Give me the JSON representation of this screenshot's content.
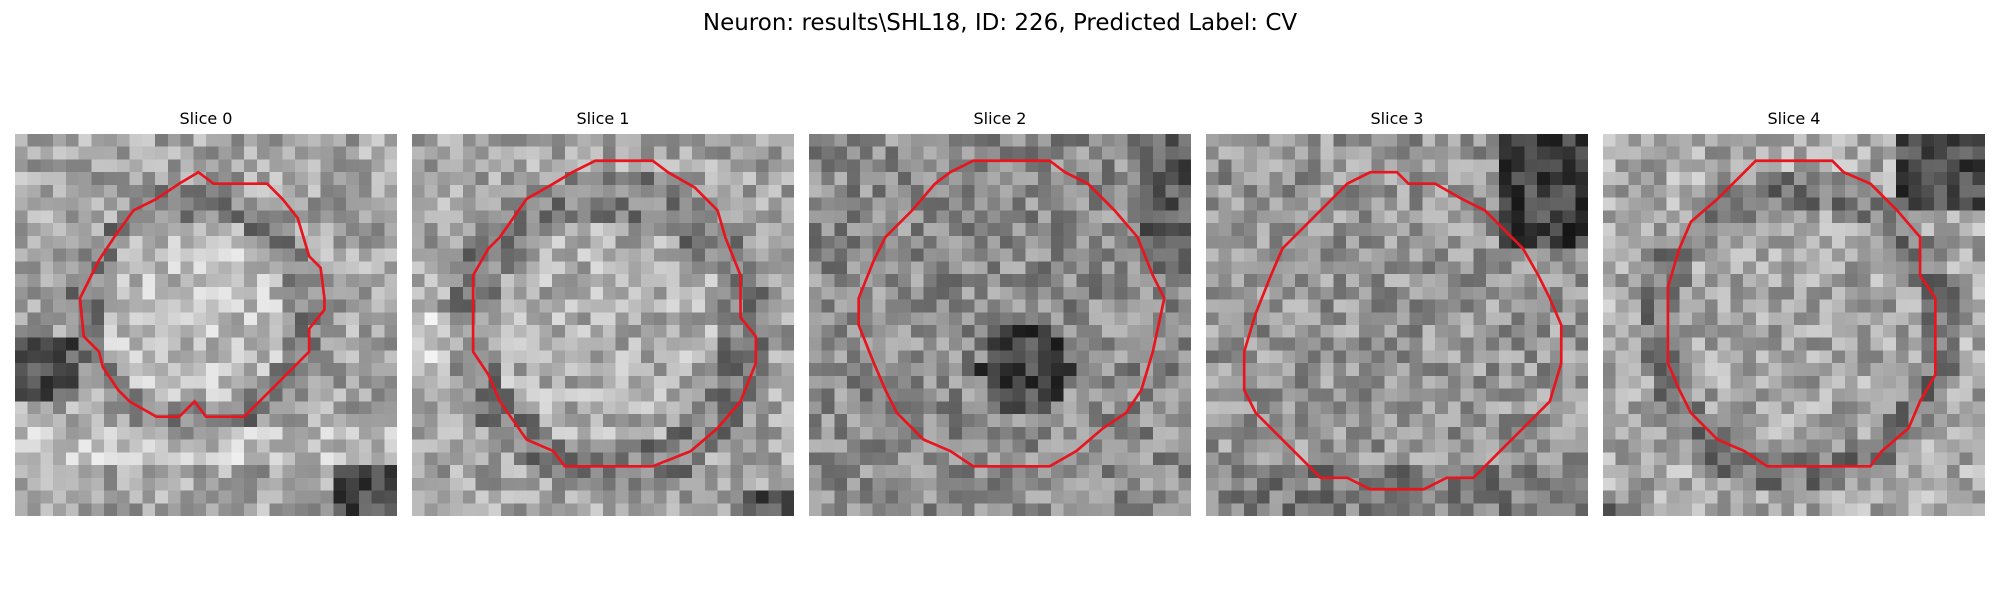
{
  "figure": {
    "title": "Neuron: results\\SHL18, ID: 226, Predicted Label: CV"
  },
  "panels": [
    {
      "title": "Slice 0",
      "contour_color": "#e8141e",
      "contour": [
        [
          0.48,
          0.1
        ],
        [
          0.52,
          0.13
        ],
        [
          0.66,
          0.13
        ],
        [
          0.7,
          0.17
        ],
        [
          0.74,
          0.22
        ],
        [
          0.77,
          0.32
        ],
        [
          0.8,
          0.35
        ],
        [
          0.81,
          0.43
        ],
        [
          0.81,
          0.46
        ],
        [
          0.77,
          0.51
        ],
        [
          0.77,
          0.57
        ],
        [
          0.74,
          0.6
        ],
        [
          0.7,
          0.64
        ],
        [
          0.6,
          0.74
        ],
        [
          0.57,
          0.74
        ],
        [
          0.5,
          0.74
        ],
        [
          0.47,
          0.7
        ],
        [
          0.43,
          0.74
        ],
        [
          0.37,
          0.74
        ],
        [
          0.3,
          0.7
        ],
        [
          0.27,
          0.67
        ],
        [
          0.23,
          0.61
        ],
        [
          0.22,
          0.57
        ],
        [
          0.18,
          0.53
        ],
        [
          0.17,
          0.43
        ],
        [
          0.22,
          0.33
        ],
        [
          0.26,
          0.27
        ],
        [
          0.31,
          0.2
        ],
        [
          0.37,
          0.17
        ],
        [
          0.43,
          0.13
        ]
      ]
    },
    {
      "title": "Slice 1",
      "contour_color": "#e8141e",
      "contour": [
        [
          0.48,
          0.07
        ],
        [
          0.63,
          0.07
        ],
        [
          0.67,
          0.1
        ],
        [
          0.74,
          0.14
        ],
        [
          0.8,
          0.2
        ],
        [
          0.82,
          0.27
        ],
        [
          0.86,
          0.37
        ],
        [
          0.86,
          0.48
        ],
        [
          0.9,
          0.53
        ],
        [
          0.9,
          0.6
        ],
        [
          0.86,
          0.7
        ],
        [
          0.8,
          0.77
        ],
        [
          0.73,
          0.83
        ],
        [
          0.63,
          0.87
        ],
        [
          0.57,
          0.87
        ],
        [
          0.4,
          0.87
        ],
        [
          0.37,
          0.83
        ],
        [
          0.3,
          0.8
        ],
        [
          0.23,
          0.7
        ],
        [
          0.2,
          0.63
        ],
        [
          0.16,
          0.57
        ],
        [
          0.16,
          0.48
        ],
        [
          0.16,
          0.37
        ],
        [
          0.2,
          0.3
        ],
        [
          0.23,
          0.27
        ],
        [
          0.3,
          0.17
        ],
        [
          0.37,
          0.13
        ],
        [
          0.42,
          0.1
        ]
      ]
    },
    {
      "title": "Slice 2",
      "contour_color": "#e8141e",
      "contour": [
        [
          0.43,
          0.07
        ],
        [
          0.63,
          0.07
        ],
        [
          0.67,
          0.1
        ],
        [
          0.73,
          0.13
        ],
        [
          0.8,
          0.2
        ],
        [
          0.86,
          0.27
        ],
        [
          0.9,
          0.37
        ],
        [
          0.93,
          0.43
        ],
        [
          0.9,
          0.57
        ],
        [
          0.87,
          0.67
        ],
        [
          0.83,
          0.73
        ],
        [
          0.77,
          0.77
        ],
        [
          0.7,
          0.83
        ],
        [
          0.63,
          0.87
        ],
        [
          0.57,
          0.87
        ],
        [
          0.43,
          0.87
        ],
        [
          0.37,
          0.83
        ],
        [
          0.3,
          0.8
        ],
        [
          0.23,
          0.73
        ],
        [
          0.2,
          0.67
        ],
        [
          0.17,
          0.6
        ],
        [
          0.13,
          0.5
        ],
        [
          0.13,
          0.43
        ],
        [
          0.17,
          0.33
        ],
        [
          0.2,
          0.27
        ],
        [
          0.27,
          0.2
        ],
        [
          0.33,
          0.13
        ],
        [
          0.37,
          0.1
        ]
      ]
    },
    {
      "title": "Slice 3",
      "contour_color": "#e8141e",
      "contour": [
        [
          0.43,
          0.1
        ],
        [
          0.5,
          0.1
        ],
        [
          0.53,
          0.13
        ],
        [
          0.6,
          0.13
        ],
        [
          0.67,
          0.17
        ],
        [
          0.73,
          0.2
        ],
        [
          0.8,
          0.27
        ],
        [
          0.83,
          0.3
        ],
        [
          0.87,
          0.37
        ],
        [
          0.9,
          0.43
        ],
        [
          0.93,
          0.5
        ],
        [
          0.93,
          0.6
        ],
        [
          0.9,
          0.7
        ],
        [
          0.83,
          0.77
        ],
        [
          0.77,
          0.83
        ],
        [
          0.7,
          0.9
        ],
        [
          0.63,
          0.9
        ],
        [
          0.57,
          0.93
        ],
        [
          0.43,
          0.93
        ],
        [
          0.37,
          0.9
        ],
        [
          0.3,
          0.9
        ],
        [
          0.23,
          0.83
        ],
        [
          0.17,
          0.77
        ],
        [
          0.13,
          0.73
        ],
        [
          0.1,
          0.67
        ],
        [
          0.1,
          0.57
        ],
        [
          0.13,
          0.47
        ],
        [
          0.17,
          0.37
        ],
        [
          0.2,
          0.3
        ],
        [
          0.27,
          0.23
        ],
        [
          0.33,
          0.17
        ],
        [
          0.37,
          0.13
        ]
      ]
    },
    {
      "title": "Slice 4",
      "contour_color": "#e8141e",
      "contour": [
        [
          0.4,
          0.07
        ],
        [
          0.6,
          0.07
        ],
        [
          0.63,
          0.1
        ],
        [
          0.7,
          0.13
        ],
        [
          0.77,
          0.2
        ],
        [
          0.83,
          0.27
        ],
        [
          0.83,
          0.37
        ],
        [
          0.87,
          0.43
        ],
        [
          0.87,
          0.57
        ],
        [
          0.87,
          0.63
        ],
        [
          0.83,
          0.7
        ],
        [
          0.8,
          0.77
        ],
        [
          0.73,
          0.83
        ],
        [
          0.7,
          0.87
        ],
        [
          0.63,
          0.87
        ],
        [
          0.57,
          0.87
        ],
        [
          0.43,
          0.87
        ],
        [
          0.37,
          0.83
        ],
        [
          0.3,
          0.8
        ],
        [
          0.23,
          0.73
        ],
        [
          0.2,
          0.67
        ],
        [
          0.17,
          0.6
        ],
        [
          0.17,
          0.5
        ],
        [
          0.17,
          0.4
        ],
        [
          0.2,
          0.3
        ],
        [
          0.23,
          0.23
        ],
        [
          0.3,
          0.17
        ],
        [
          0.37,
          0.1
        ]
      ]
    }
  ]
}
